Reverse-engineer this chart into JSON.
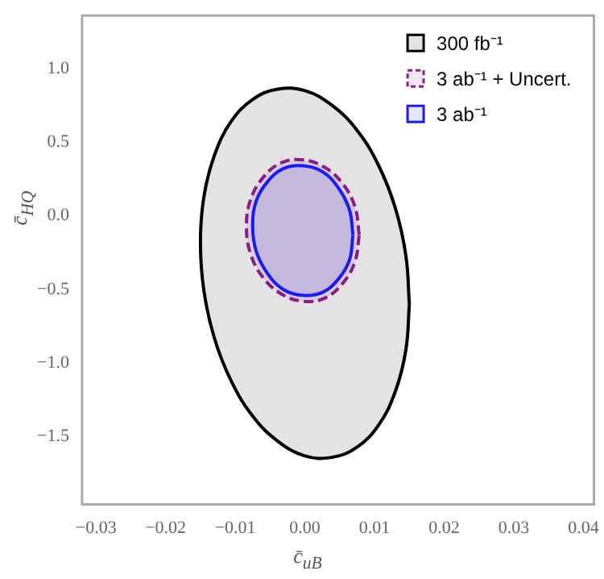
{
  "chart_data": {
    "type": "area",
    "xlabel": "c̄$_{uB}$",
    "ylabel": "c̄$_{HQ}$",
    "xlim": [
      -0.032,
      0.0415
    ],
    "ylim": [
      -1.96,
      1.36
    ],
    "xticks": [
      {
        "value": -0.03,
        "label": "−0.03"
      },
      {
        "value": -0.02,
        "label": "−0.02"
      },
      {
        "value": -0.01,
        "label": "−0.01"
      },
      {
        "value": 0,
        "label": "0.00"
      },
      {
        "value": 0.01,
        "label": "0.01"
      },
      {
        "value": 0.02,
        "label": "0.02"
      },
      {
        "value": 0.03,
        "label": "0.03"
      },
      {
        "value": 0.04,
        "label": "0.04"
      }
    ],
    "yticks": [
      {
        "value": -1.5,
        "label": "−1.5"
      },
      {
        "value": -1,
        "label": "−1.0"
      },
      {
        "value": -0.5,
        "label": "−0.5"
      },
      {
        "value": 0,
        "label": "0.0"
      },
      {
        "value": 0.5,
        "label": "0.5"
      },
      {
        "value": 1,
        "label": "1.0"
      }
    ],
    "grid": false,
    "legend": "top right",
    "marker": "none",
    "series": [
      {
        "name": "300 fb⁻¹",
        "color": "#000000",
        "line_style": "solid",
        "x": [
          0.015,
          0.0145,
          0.013,
          0.0106,
          0.0075,
          0.0039,
          0,
          -0.0039,
          -0.0075,
          -0.0106,
          -0.013,
          -0.0145,
          -0.015,
          -0.0145,
          -0.013,
          -0.0106,
          -0.0075,
          -0.0039,
          0,
          0.0039,
          0.0075,
          0.0106,
          0.013,
          0.0145,
          0.015
        ],
        "values": [
          -0.6,
          -0.27,
          0.05,
          0.34,
          0.58,
          0.75,
          0.85,
          0.86,
          0.79,
          0.64,
          0.41,
          0.13,
          -0.18,
          -0.51,
          -0.83,
          -1.12,
          -1.36,
          -1.53,
          -1.63,
          -1.64,
          -1.57,
          -1.42,
          -1.19,
          -0.91,
          -0.6
        ]
      },
      {
        "name": "3 ab⁻¹ + Uncert.",
        "color": "#8b1a8b",
        "line_style": "dashed",
        "x": [
          0.0078,
          0.0072,
          0.0054,
          0.0028,
          -0.0003,
          -0.0034,
          -0.006,
          -0.0078,
          -0.0084,
          -0.0078,
          -0.006,
          -0.0034,
          -0.0003,
          0.0028,
          0.0054,
          0.0072,
          0.0078
        ],
        "values": [
          -0.13,
          0.06,
          0.22,
          0.33,
          0.38,
          0.36,
          0.26,
          0.11,
          -0.07,
          -0.26,
          -0.42,
          -0.53,
          -0.58,
          -0.56,
          -0.46,
          -0.31,
          -0.13
        ]
      },
      {
        "name": "3 ab⁻¹",
        "color": "#1a1aff",
        "line_style": "solid",
        "x": [
          0.0069,
          0.0064,
          0.0048,
          0.0025,
          -0.0003,
          -0.0031,
          -0.0054,
          -0.007,
          -0.0075,
          -0.007,
          -0.0054,
          -0.0031,
          -0.0003,
          0.0025,
          0.0048,
          0.0064,
          0.0069
        ],
        "values": [
          -0.13,
          0.04,
          0.19,
          0.3,
          0.34,
          0.32,
          0.23,
          0.1,
          -0.07,
          -0.24,
          -0.39,
          -0.5,
          -0.54,
          -0.52,
          -0.43,
          -0.3,
          -0.13
        ]
      }
    ]
  }
}
